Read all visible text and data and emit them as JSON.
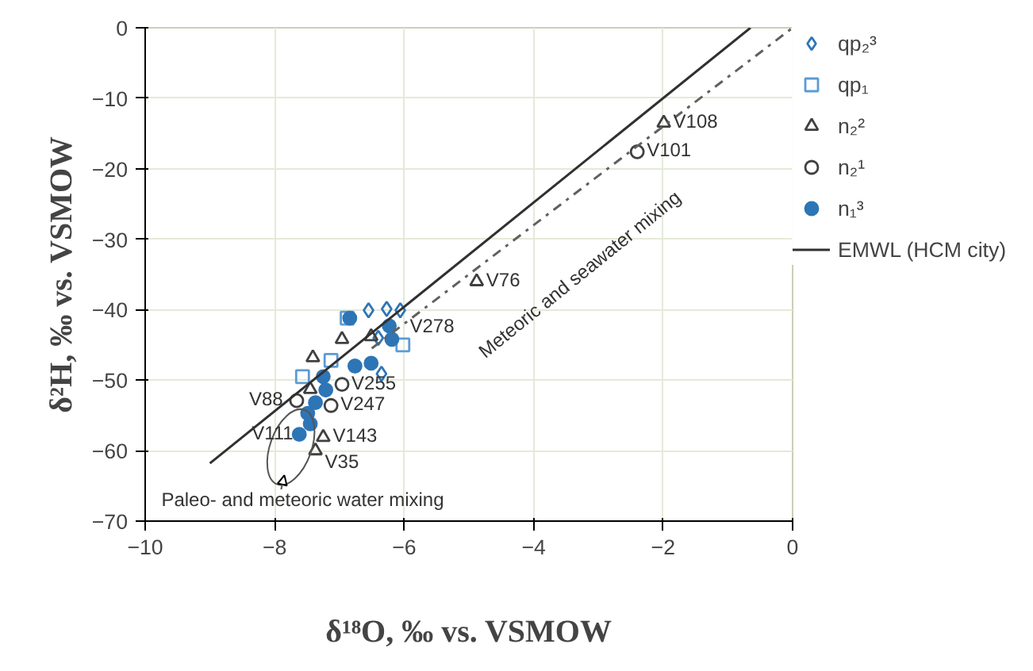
{
  "chart_data": {
    "type": "scatter",
    "xlabel": "δ¹⁸O, ‰ vs. VSMOW",
    "ylabel": "δ²H, ‰ vs. VSMOW",
    "xlim": [
      -10,
      0
    ],
    "ylim": [
      -70,
      0
    ],
    "xticks": [
      -10,
      -8,
      -6,
      -4,
      -2,
      0
    ],
    "yticks": [
      -70,
      -60,
      -50,
      -40,
      -30,
      -20,
      -10,
      0
    ],
    "grid": true,
    "legend": "right",
    "series": [
      {
        "name": "qp₂³",
        "color": "#2e75b6",
        "marker": "diamond",
        "x": [
          -6.55,
          -6.27,
          -6.06,
          -6.35,
          -6.4
        ],
        "values": [
          -40.1,
          -39.9,
          -40.1,
          -49.1,
          -44
        ]
      },
      {
        "name": "qp₁",
        "color": "#5b9bd5",
        "marker": "square",
        "x": [
          -6.88,
          -6.02,
          -7.57,
          -7.13
        ],
        "values": [
          -41.2,
          -45.0,
          -49.5,
          -47.2
        ]
      },
      {
        "name": "n₂²",
        "color": "#404040",
        "marker": "triangle",
        "x": [
          -6.96,
          -7.41,
          -7.45,
          -6.51,
          -7.25,
          -7.37,
          -1.99,
          -4.88
        ],
        "values": [
          -44.2,
          -46.8,
          -51.3,
          -43.8,
          -58.1,
          -60.0,
          -13.5,
          -36.0
        ]
      },
      {
        "name": "n₂¹",
        "color": "#404040",
        "marker": "circle",
        "x": [
          -6.96,
          -7.13,
          -7.66,
          -2.4
        ],
        "values": [
          -50.6,
          -53.6,
          -52.9,
          -17.6
        ]
      },
      {
        "name": "n₁³",
        "color": "#2e75b6",
        "marker": "circle",
        "x": [
          -6.84,
          -6.23,
          -6.19,
          -6.51,
          -6.76,
          -7.21,
          -7.37,
          -7.45,
          -7.62,
          -7.49,
          -7.25
        ],
        "values": [
          -41.2,
          -42.3,
          -44.2,
          -47.6,
          -48.0,
          -51.4,
          -53.2,
          -56.2,
          -57.7,
          -54.7,
          -49.5
        ]
      },
      {
        "name": "EMWL (HCM city)",
        "type": "line",
        "color": "#303030",
        "line_style": "solid",
        "x": [
          -9.0,
          -0.65
        ],
        "values": [
          -61.8,
          0
        ]
      },
      {
        "type": "line",
        "color": "#606060",
        "line_style": "dashdot",
        "x": [
          -6.5,
          0
        ],
        "values": [
          -45.5,
          0
        ]
      }
    ],
    "annotations": [
      {
        "text": "V108",
        "x": -1.99,
        "y": -13.5
      },
      {
        "text": "V101",
        "x": -2.4,
        "y": -17.6
      },
      {
        "text": "V76",
        "x": -4.88,
        "y": -36.0
      },
      {
        "text": "V278",
        "x": -6.06,
        "y": -42.5
      },
      {
        "text": "V255",
        "x": -6.96,
        "y": -50.6
      },
      {
        "text": "V247",
        "x": -7.13,
        "y": -53.6
      },
      {
        "text": "V88",
        "x": -7.66,
        "y": -52.9
      },
      {
        "text": "V111",
        "x": -7.62,
        "y": -57.7
      },
      {
        "text": "V143",
        "x": -7.25,
        "y": -58.1
      },
      {
        "text": "V35",
        "x": -7.37,
        "y": -60.0
      },
      "Meteoric and seawater mixing",
      "Paleo- and meteoric water mixing"
    ]
  }
}
